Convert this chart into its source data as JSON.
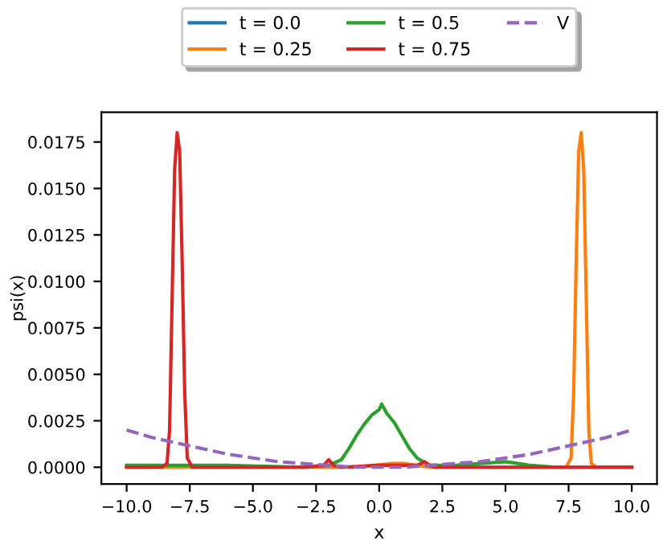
{
  "chart_data": {
    "type": "line",
    "xlabel": "x",
    "ylabel": "psi(x)",
    "legend": "top",
    "grid": false,
    "xlim": [
      -11,
      11
    ],
    "xticks": [
      {
        "value": -10,
        "label": "−10.0"
      },
      {
        "value": -7.5,
        "label": "−7.5"
      },
      {
        "value": -5,
        "label": "−5.0"
      },
      {
        "value": -2.5,
        "label": "−2.5"
      },
      {
        "value": 0,
        "label": "0.0"
      },
      {
        "value": 2.5,
        "label": "2.5"
      },
      {
        "value": 5,
        "label": "5.0"
      },
      {
        "value": 7.5,
        "label": "7.5"
      },
      {
        "value": 10,
        "label": "10.0"
      }
    ],
    "ylim": [
      -0.0009,
      0.0191
    ],
    "yticks": [
      {
        "value": 0,
        "label": "0.0000"
      },
      {
        "value": 0.0025,
        "label": "0.0025"
      },
      {
        "value": 0.005,
        "label": "0.0050"
      },
      {
        "value": 0.0075,
        "label": "0.0075"
      },
      {
        "value": 0.01,
        "label": "0.0100"
      },
      {
        "value": 0.0125,
        "label": "0.0125"
      },
      {
        "value": 0.015,
        "label": "0.0150"
      },
      {
        "value": 0.0175,
        "label": "0.0175"
      }
    ],
    "series": [
      {
        "name": "t = 0.0",
        "color": "#1f77b4",
        "line_style": "solid"
      },
      {
        "name": "t = 0.25",
        "color": "#ff7f0e",
        "line_style": "solid",
        "x": [
          -10,
          -3,
          -1,
          0.5,
          1.0,
          2,
          7.4,
          7.6,
          7.7,
          7.8,
          7.9,
          8.0,
          8.1,
          8.2,
          8.3,
          8.4,
          8.6,
          10
        ],
        "values": [
          0,
          0,
          0,
          0.0002,
          0.0002,
          0,
          0,
          0.0005,
          0.004,
          0.011,
          0.017,
          0.018,
          0.016,
          0.009,
          0.002,
          0.0002,
          0,
          0
        ]
      },
      {
        "name": "t = 0.5",
        "color": "#2ca02c",
        "line_style": "solid",
        "x": [
          -10,
          -8,
          -6,
          -3,
          -2,
          -1.5,
          -1.2,
          -0.9,
          -0.6,
          -0.3,
          0,
          0.1,
          0.3,
          0.6,
          0.9,
          1.2,
          1.5,
          2,
          3,
          4,
          5,
          5.5,
          6,
          7,
          10
        ],
        "values": [
          0.0001,
          0.0001,
          0.0001,
          0,
          0.0001,
          0.0004,
          0.001,
          0.0017,
          0.0023,
          0.0028,
          0.0031,
          0.0034,
          0.0029,
          0.0024,
          0.0017,
          0.001,
          0.0005,
          0.0001,
          0.0001,
          0.0002,
          0.0003,
          0.0002,
          0.0001,
          0,
          0
        ]
      },
      {
        "name": "t = 0.75",
        "color": "#d62728",
        "line_style": "solid",
        "x": [
          -10,
          -8.6,
          -8.4,
          -8.3,
          -8.2,
          -8.1,
          -8.0,
          -7.9,
          -7.8,
          -7.7,
          -7.6,
          -7.4,
          -3,
          -2.2,
          -2.0,
          -1.8,
          -1.5,
          0,
          1,
          1.5,
          1.8,
          2.0,
          2.2,
          3,
          10
        ],
        "values": [
          0,
          0,
          0.0002,
          0.002,
          0.009,
          0.016,
          0.018,
          0.017,
          0.011,
          0.004,
          0.0005,
          0,
          0,
          0.0001,
          0.0004,
          0.0001,
          0,
          0.0001,
          0.0001,
          0.0001,
          0.0003,
          0.0001,
          0,
          0,
          0
        ]
      },
      {
        "name": "V",
        "color": "#9467bd",
        "line_style": "dashed",
        "x": [
          -10,
          -9,
          -8,
          -7,
          -6,
          -5,
          -4,
          -3,
          -2,
          -1,
          0,
          1,
          2,
          3,
          4,
          5,
          6,
          7,
          8,
          9,
          10
        ],
        "values": [
          0.002,
          0.0016,
          0.0013,
          0.001,
          0.0007,
          0.0005,
          0.0003,
          0.0002,
          0.0001,
          0,
          0,
          0,
          0.0001,
          0.0002,
          0.0003,
          0.0005,
          0.0007,
          0.001,
          0.0013,
          0.0016,
          0.002
        ]
      }
    ]
  }
}
